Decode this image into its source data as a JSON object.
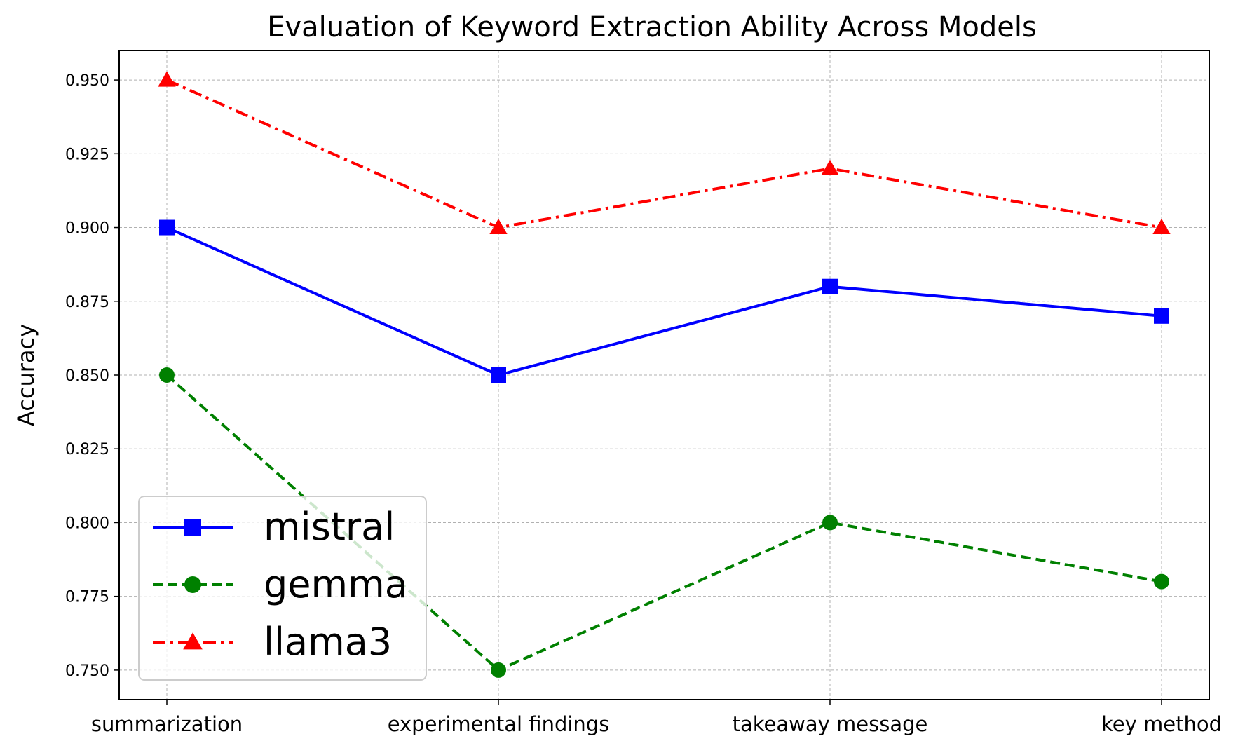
{
  "chart_data": {
    "type": "line",
    "title": "Evaluation of Keyword Extraction Ability Across Models",
    "xlabel": "",
    "ylabel": "Accuracy",
    "categories": [
      "summarization",
      "experimental findings",
      "takeaway message",
      "key method"
    ],
    "ylim": [
      0.74,
      0.96
    ],
    "yticks": [
      "0.750",
      "0.775",
      "0.800",
      "0.825",
      "0.850",
      "0.875",
      "0.900",
      "0.925",
      "0.950"
    ],
    "grid": true,
    "legend_position": "lower-left",
    "series": [
      {
        "name": "mistral",
        "values": [
          0.9,
          0.85,
          0.88,
          0.87
        ],
        "color": "#0000ff",
        "linestyle": "solid",
        "marker": "square"
      },
      {
        "name": "gemma",
        "values": [
          0.85,
          0.75,
          0.8,
          0.78
        ],
        "color": "#008000",
        "linestyle": "dashed",
        "marker": "circle"
      },
      {
        "name": "llama3",
        "values": [
          0.95,
          0.9,
          0.92,
          0.9
        ],
        "color": "#ff0000",
        "linestyle": "dashdot",
        "marker": "triangle"
      }
    ]
  }
}
